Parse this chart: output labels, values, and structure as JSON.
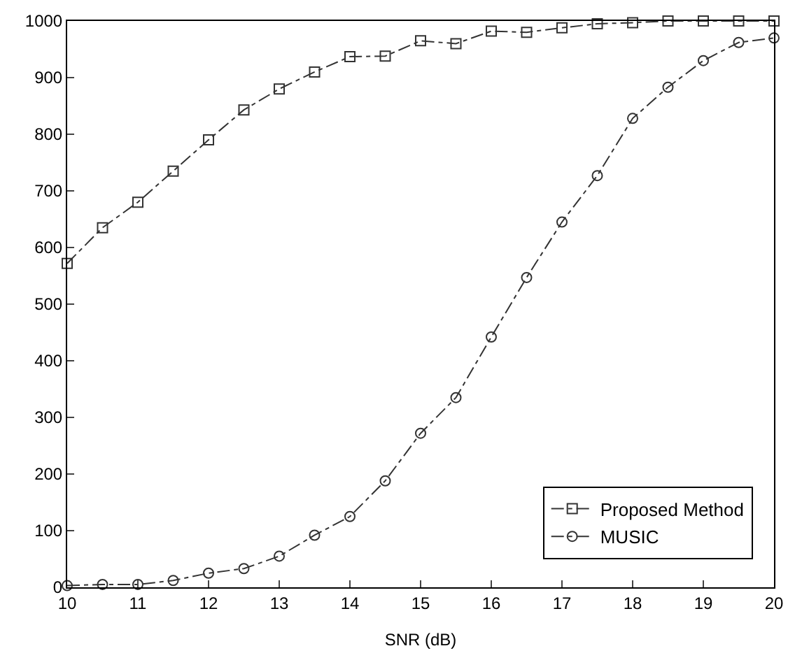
{
  "chart_data": {
    "type": "line",
    "xlabel": "SNR (dB)",
    "x": [
      10,
      10.5,
      11,
      11.5,
      12,
      12.5,
      13,
      13.5,
      14,
      14.5,
      15,
      15.5,
      16,
      16.5,
      17,
      17.5,
      18,
      18.5,
      19,
      19.5,
      20
    ],
    "series": [
      {
        "name": "Proposed Method",
        "color": "#333333",
        "marker": "square",
        "values": [
          572,
          635,
          680,
          735,
          790,
          843,
          880,
          910,
          937,
          938,
          965,
          960,
          982,
          980,
          988,
          995,
          997,
          1000,
          1000,
          1000,
          1000
        ]
      },
      {
        "name": "MUSIC",
        "color": "#333333",
        "marker": "circle",
        "values": [
          3,
          5,
          5,
          12,
          25,
          33,
          55,
          92,
          125,
          188,
          272,
          335,
          442,
          547,
          645,
          727,
          828,
          883,
          930,
          962,
          970
        ]
      }
    ],
    "xlim": [
      10,
      20
    ],
    "xticks": [
      10,
      11,
      12,
      13,
      14,
      15,
      16,
      17,
      18,
      19,
      20
    ],
    "ylim": [
      0,
      1000
    ],
    "yticks": [
      0,
      100,
      200,
      300,
      400,
      500,
      600,
      700,
      800,
      900,
      1000
    ],
    "legend": "bottom right",
    "line_style": "dashed"
  }
}
